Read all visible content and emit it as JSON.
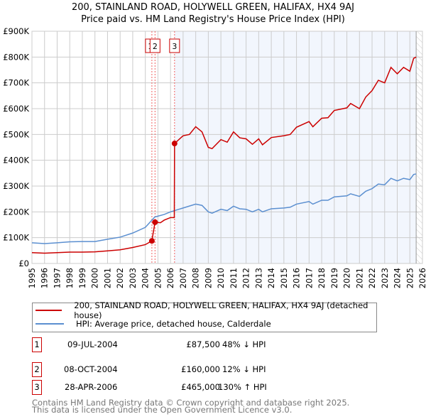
{
  "chart_data": {
    "type": "line",
    "title": "200, STAINLAND ROAD, HOLYWELL GREEN, HALIFAX, HX4 9AJ",
    "subtitle": "Price paid vs. HM Land Registry's House Price Index (HPI)",
    "xlim": [
      1995,
      2026
    ],
    "ylim": [
      0,
      900000
    ],
    "x_ticks": [
      "1995",
      "1996",
      "1997",
      "1998",
      "1999",
      "2000",
      "2001",
      "2002",
      "2003",
      "2004",
      "2005",
      "2006",
      "2007",
      "2008",
      "2009",
      "2010",
      "2011",
      "2012",
      "2013",
      "2014",
      "2015",
      "2016",
      "2017",
      "2018",
      "2019",
      "2020",
      "2021",
      "2022",
      "2023",
      "2024",
      "2025",
      "2026"
    ],
    "y_ticks": [
      {
        "v": 0,
        "label": "£0"
      },
      {
        "v": 100000,
        "label": "£100K"
      },
      {
        "v": 200000,
        "label": "£200K"
      },
      {
        "v": 300000,
        "label": "£300K"
      },
      {
        "v": 400000,
        "label": "£400K"
      },
      {
        "v": 500000,
        "label": "£500K"
      },
      {
        "v": 600000,
        "label": "£600K"
      },
      {
        "v": 700000,
        "label": "£700K"
      },
      {
        "v": 800000,
        "label": "£800K"
      },
      {
        "v": 900000,
        "label": "£900K"
      }
    ],
    "grid": true,
    "shaded_from": 2006.32,
    "data_end": 2025.5,
    "series": [
      {
        "name": "200, STAINLAND ROAD, HOLYWELL GREEN, HALIFAX, HX4 9AJ (detached house)",
        "color": "#cc0000",
        "x": [
          1995,
          1996,
          1997,
          1998,
          1999,
          2000,
          2001,
          2002,
          2003,
          2004,
          2004.52,
          2004.77,
          2005.2,
          2005.5,
          2006,
          2006.3,
          2006.32,
          2007,
          2007.5,
          2008,
          2008.5,
          2009,
          2009.3,
          2010,
          2010.5,
          2011,
          2011.5,
          2012,
          2012.5,
          2013,
          2013.3,
          2014,
          2015,
          2015.5,
          2016,
          2017,
          2017.3,
          2018,
          2018.5,
          2019,
          2020,
          2020.3,
          2021,
          2021.5,
          2022,
          2022.5,
          2023,
          2023.5,
          2024,
          2024.5,
          2025,
          2025.3,
          2025.5
        ],
        "y": [
          42000,
          40000,
          42000,
          44000,
          44000,
          45000,
          49000,
          53000,
          62000,
          73000,
          87500,
          160000,
          158000,
          168000,
          178000,
          178000,
          465000,
          495000,
          500000,
          530000,
          510000,
          450000,
          445000,
          480000,
          470000,
          510000,
          487000,
          483000,
          462000,
          483000,
          460000,
          488000,
          495000,
          500000,
          528000,
          550000,
          530000,
          563000,
          565000,
          593000,
          603000,
          620000,
          600000,
          645000,
          670000,
          710000,
          700000,
          760000,
          735000,
          760000,
          745000,
          795000,
          800000
        ]
      },
      {
        "name": "HPI: Average price, detached house, Calderdale",
        "color": "#5b8fd0",
        "x": [
          1995,
          1996,
          1997,
          1998,
          1999,
          2000,
          2001,
          2002,
          2003,
          2004,
          2004.75,
          2005.5,
          2006,
          2007,
          2008,
          2008.5,
          2009,
          2009.3,
          2010,
          2010.5,
          2011,
          2011.5,
          2012,
          2012.5,
          2013,
          2013.3,
          2014,
          2015,
          2015.5,
          2016,
          2017,
          2017.3,
          2018,
          2018.5,
          2019,
          2020,
          2020.3,
          2021,
          2021.5,
          2022,
          2022.5,
          2023,
          2023.5,
          2024,
          2024.5,
          2025,
          2025.3,
          2025.5
        ],
        "y": [
          80000,
          77000,
          80000,
          84000,
          85000,
          85000,
          94000,
          102000,
          118000,
          140000,
          180000,
          190000,
          200000,
          215000,
          230000,
          225000,
          200000,
          195000,
          210000,
          205000,
          222000,
          212000,
          210000,
          200000,
          210000,
          200000,
          212000,
          215000,
          218000,
          230000,
          240000,
          230000,
          245000,
          245000,
          258000,
          262000,
          270000,
          260000,
          280000,
          290000,
          308000,
          305000,
          330000,
          320000,
          330000,
          325000,
          345000,
          347000
        ]
      }
    ],
    "sales": [
      {
        "id": "1",
        "x": 2004.52,
        "price": 87500,
        "date": "09-JUL-2004",
        "price_label": "£87,500",
        "hpi": "48% ↓ HPI"
      },
      {
        "id": "2",
        "x": 2004.77,
        "price": 160000,
        "date": "08-OCT-2004",
        "price_label": "£160,000",
        "hpi": "12% ↓ HPI"
      },
      {
        "id": "3",
        "x": 2006.32,
        "price": 465000,
        "date": "28-APR-2006",
        "price_label": "£465,000",
        "hpi": "130% ↑ HPI"
      }
    ]
  },
  "legend": {
    "red": "200, STAINLAND ROAD, HOLYWELL GREEN, HALIFAX, HX4 9AJ (detached house)",
    "blue": "HPI: Average price, detached house, Calderdale"
  },
  "footer": {
    "line1": "Contains HM Land Registry data © Crown copyright and database right 2025.",
    "line2": "This data is licensed under the Open Government Licence v3.0."
  }
}
